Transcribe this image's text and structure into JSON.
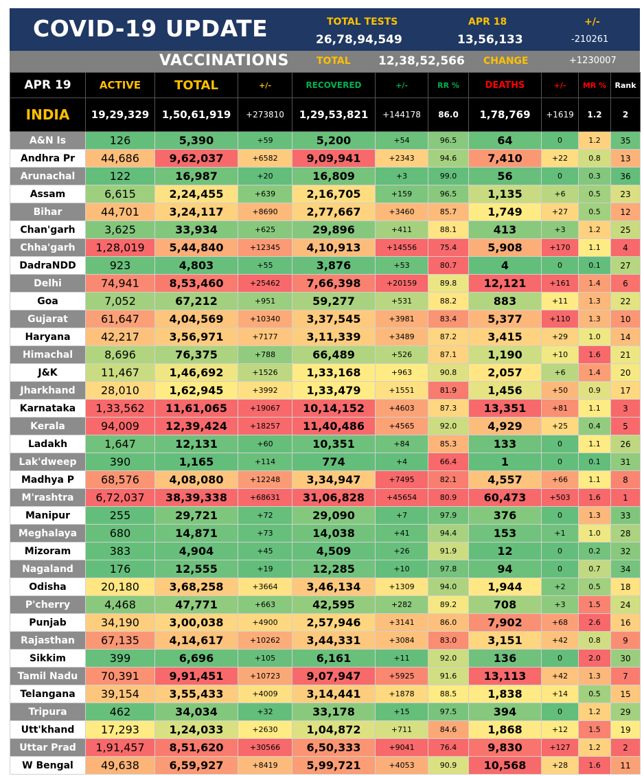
{
  "header": {
    "title": "COVID-19 UPDATE",
    "total_tests_label": "TOTAL TESTS",
    "total_tests": "26,78,94,549",
    "date_label": "APR 18",
    "date_tests": "13,56,133",
    "pm_label": "+/-",
    "pm_value": "-210261"
  },
  "vaccinations": {
    "title": "VACCINATIONS",
    "total_label": "TOTAL",
    "total": "12,38,52,566",
    "change_label": "CHANGE",
    "change": "+1230007"
  },
  "columns": [
    "APR 19",
    "ACTIVE",
    "TOTAL",
    "+/-",
    "RECOVERED",
    "+/-",
    "RR %",
    "DEATHS",
    "+/-",
    "MR %",
    "Rank"
  ],
  "column_colors": {
    "date": "#ffffff",
    "active": "#ffc000",
    "total": "#ffc000",
    "total_pm": "#ffc000",
    "recovered": "#00b050",
    "recovered_pm": "#00b050",
    "rr": "#00b050",
    "deaths": "#ff0000",
    "deaths_pm": "#ff0000",
    "mr": "#ff0000",
    "rank": "#ffffff"
  },
  "india": [
    "INDIA",
    "19,29,329",
    "1,50,61,919",
    "+273810",
    "1,29,53,821",
    "+144178",
    "86.0",
    "1,78,769",
    "+1619",
    "1.2",
    "2"
  ],
  "rows": [
    [
      "A&N Is",
      "126",
      "5,390",
      "+59",
      "5,200",
      "+54",
      "96.5",
      "64",
      "0",
      "1.2",
      "35"
    ],
    [
      "Andhra Pr",
      "44,686",
      "9,62,037",
      "+6582",
      "9,09,941",
      "+2343",
      "94.6",
      "7,410",
      "+22",
      "0.8",
      "13"
    ],
    [
      "Arunachal",
      "122",
      "16,987",
      "+20",
      "16,809",
      "+3",
      "99.0",
      "56",
      "0",
      "0.3",
      "36"
    ],
    [
      "Assam",
      "6,615",
      "2,24,455",
      "+639",
      "2,16,705",
      "+159",
      "96.5",
      "1,135",
      "+6",
      "0.5",
      "23"
    ],
    [
      "Bihar",
      "44,701",
      "3,24,117",
      "+8690",
      "2,77,667",
      "+3460",
      "85.7",
      "1,749",
      "+27",
      "0.5",
      "12"
    ],
    [
      "Chan'garh",
      "3,625",
      "33,934",
      "+625",
      "29,896",
      "+411",
      "88.1",
      "413",
      "+3",
      "1.2",
      "25"
    ],
    [
      "Chha'garh",
      "1,28,019",
      "5,44,840",
      "+12345",
      "4,10,913",
      "+14556",
      "75.4",
      "5,908",
      "+170",
      "1.1",
      "4"
    ],
    [
      "DadraNDD",
      "923",
      "4,803",
      "+55",
      "3,876",
      "+53",
      "80.7",
      "4",
      "0",
      "0.1",
      "27"
    ],
    [
      "Delhi",
      "74,941",
      "8,53,460",
      "+25462",
      "7,66,398",
      "+20159",
      "89.8",
      "12,121",
      "+161",
      "1.4",
      "6"
    ],
    [
      "Goa",
      "7,052",
      "67,212",
      "+951",
      "59,277",
      "+531",
      "88.2",
      "883",
      "+11",
      "1.3",
      "22"
    ],
    [
      "Gujarat",
      "61,647",
      "4,04,569",
      "+10340",
      "3,37,545",
      "+3981",
      "83.4",
      "5,377",
      "+110",
      "1.3",
      "10"
    ],
    [
      "Haryana",
      "42,217",
      "3,56,971",
      "+7177",
      "3,11,339",
      "+3489",
      "87.2",
      "3,415",
      "+29",
      "1.0",
      "14"
    ],
    [
      "Himachal",
      "8,696",
      "76,375",
      "+788",
      "66,489",
      "+526",
      "87.1",
      "1,190",
      "+10",
      "1.6",
      "21"
    ],
    [
      "J&K",
      "11,467",
      "1,46,692",
      "+1526",
      "1,33,168",
      "+963",
      "90.8",
      "2,057",
      "+6",
      "1.4",
      "20"
    ],
    [
      "Jharkhand",
      "28,010",
      "1,62,945",
      "+3992",
      "1,33,479",
      "+1551",
      "81.9",
      "1,456",
      "+50",
      "0.9",
      "17"
    ],
    [
      "Karnataka",
      "1,33,562",
      "11,61,065",
      "+19067",
      "10,14,152",
      "+4603",
      "87.3",
      "13,351",
      "+81",
      "1.1",
      "3"
    ],
    [
      "Kerala",
      "94,009",
      "12,39,424",
      "+18257",
      "11,40,486",
      "+4565",
      "92.0",
      "4,929",
      "+25",
      "0.4",
      "5"
    ],
    [
      "Ladakh",
      "1,647",
      "12,131",
      "+60",
      "10,351",
      "+84",
      "85.3",
      "133",
      "0",
      "1.1",
      "26"
    ],
    [
      "Lak'dweep",
      "390",
      "1,165",
      "+114",
      "774",
      "+4",
      "66.4",
      "1",
      "0",
      "0.1",
      "31"
    ],
    [
      "Madhya P",
      "68,576",
      "4,08,080",
      "+12248",
      "3,34,947",
      "+7495",
      "82.1",
      "4,557",
      "+66",
      "1.1",
      "8"
    ],
    [
      "M'rashtra",
      "6,72,037",
      "38,39,338",
      "+68631",
      "31,06,828",
      "+45654",
      "80.9",
      "60,473",
      "+503",
      "1.6",
      "1"
    ],
    [
      "Manipur",
      "255",
      "29,721",
      "+72",
      "29,090",
      "+7",
      "97.9",
      "376",
      "0",
      "1.3",
      "33"
    ],
    [
      "Meghalaya",
      "680",
      "14,871",
      "+73",
      "14,038",
      "+41",
      "94.4",
      "153",
      "+1",
      "1.0",
      "28"
    ],
    [
      "Mizoram",
      "383",
      "4,904",
      "+45",
      "4,509",
      "+26",
      "91.9",
      "12",
      "0",
      "0.2",
      "32"
    ],
    [
      "Nagaland",
      "176",
      "12,555",
      "+19",
      "12,285",
      "+10",
      "97.8",
      "94",
      "0",
      "0.7",
      "34"
    ],
    [
      "Odisha",
      "20,180",
      "3,68,258",
      "+3664",
      "3,46,134",
      "+1309",
      "94.0",
      "1,944",
      "+2",
      "0.5",
      "18"
    ],
    [
      "P'cherry",
      "4,468",
      "47,771",
      "+663",
      "42,595",
      "+282",
      "89.2",
      "708",
      "+3",
      "1.5",
      "24"
    ],
    [
      "Punjab",
      "34,190",
      "3,00,038",
      "+4900",
      "2,57,946",
      "+3141",
      "86.0",
      "7,902",
      "+68",
      "2.6",
      "16"
    ],
    [
      "Rajasthan",
      "67,135",
      "4,14,617",
      "+10262",
      "3,44,331",
      "+3084",
      "83.0",
      "3,151",
      "+42",
      "0.8",
      "9"
    ],
    [
      "Sikkim",
      "399",
      "6,696",
      "+105",
      "6,161",
      "+11",
      "92.0",
      "136",
      "0",
      "2.0",
      "30"
    ],
    [
      "Tamil Nadu",
      "70,391",
      "9,91,451",
      "+10723",
      "9,07,947",
      "+5925",
      "91.6",
      "13,113",
      "+42",
      "1.3",
      "7"
    ],
    [
      "Telangana",
      "39,154",
      "3,55,433",
      "+4009",
      "3,14,441",
      "+1878",
      "88.5",
      "1,838",
      "+14",
      "0.5",
      "15"
    ],
    [
      "Tripura",
      "462",
      "34,034",
      "+32",
      "33,178",
      "+15",
      "97.5",
      "394",
      "0",
      "1.2",
      "29"
    ],
    [
      "Utt'khand",
      "17,293",
      "1,24,033",
      "+2630",
      "1,04,872",
      "+711",
      "84.6",
      "1,868",
      "+12",
      "1.5",
      "19"
    ],
    [
      "Uttar Prad",
      "1,91,457",
      "8,51,620",
      "+30566",
      "6,50,333",
      "+9041",
      "76.4",
      "9,830",
      "+127",
      "1.2",
      "2"
    ],
    [
      "W Bengal",
      "49,638",
      "6,59,927",
      "+8419",
      "5,99,721",
      "+4053",
      "90.9",
      "10,568",
      "+28",
      "1.6",
      "11"
    ]
  ],
  "chart_data": {
    "type": "table",
    "title": "COVID-19 UPDATE",
    "columns": [
      "APR 19",
      "ACTIVE",
      "TOTAL",
      "+/-",
      "RECOVERED",
      "+/-",
      "RR %",
      "DEATHS",
      "+/-",
      "MR %",
      "Rank"
    ],
    "india": [
      "INDIA",
      1929329,
      15061919,
      273810,
      12953821,
      144178,
      86.0,
      178769,
      1619,
      1.2,
      2
    ],
    "states": [
      "A&N Is",
      "Andhra Pr",
      "Arunachal",
      "Assam",
      "Bihar",
      "Chan'garh",
      "Chha'garh",
      "DadraNDD",
      "Delhi",
      "Goa",
      "Gujarat",
      "Haryana",
      "Himachal",
      "J&K",
      "Jharkhand",
      "Karnataka",
      "Kerala",
      "Ladakh",
      "Lak'dweep",
      "Madhya P",
      "M'rashtra",
      "Manipur",
      "Meghalaya",
      "Mizoram",
      "Nagaland",
      "Odisha",
      "P'cherry",
      "Punjab",
      "Rajasthan",
      "Sikkim",
      "Tamil Nadu",
      "Telangana",
      "Tripura",
      "Utt'khand",
      "Uttar Prad",
      "W Bengal"
    ],
    "active": [
      126,
      44686,
      122,
      6615,
      44701,
      3625,
      128019,
      923,
      74941,
      7052,
      61647,
      42217,
      8696,
      11467,
      28010,
      133562,
      94009,
      1647,
      390,
      68576,
      672037,
      255,
      680,
      383,
      176,
      20180,
      4468,
      34190,
      67135,
      399,
      70391,
      39154,
      462,
      17293,
      191457,
      49638
    ],
    "total": [
      5390,
      962037,
      16987,
      224455,
      324117,
      33934,
      544840,
      4803,
      853460,
      67212,
      404569,
      356971,
      76375,
      146692,
      162945,
      1161065,
      1239424,
      12131,
      1165,
      408080,
      3839338,
      29721,
      14871,
      4904,
      12555,
      368258,
      47771,
      300038,
      414617,
      6696,
      991451,
      355433,
      34034,
      124033,
      851620,
      659927
    ],
    "total_change": [
      59,
      6582,
      20,
      639,
      8690,
      625,
      12345,
      55,
      25462,
      951,
      10340,
      7177,
      788,
      1526,
      3992,
      19067,
      18257,
      60,
      114,
      12248,
      68631,
      72,
      73,
      45,
      19,
      3664,
      663,
      4900,
      10262,
      105,
      10723,
      4009,
      32,
      2630,
      30566,
      8419
    ],
    "recovered": [
      5200,
      909941,
      16809,
      216705,
      277667,
      29896,
      410913,
      3876,
      766398,
      59277,
      337545,
      311339,
      66489,
      133168,
      133479,
      1014152,
      1140486,
      10351,
      774,
      334947,
      3106828,
      29090,
      14038,
      4509,
      12285,
      346134,
      42595,
      257946,
      344331,
      6161,
      907947,
      314441,
      33178,
      104872,
      650333,
      599721
    ],
    "recovered_change": [
      54,
      2343,
      3,
      159,
      3460,
      411,
      14556,
      53,
      20159,
      531,
      3981,
      3489,
      526,
      963,
      1551,
      4603,
      4565,
      84,
      4,
      7495,
      45654,
      7,
      41,
      26,
      10,
      1309,
      282,
      3141,
      3084,
      11,
      5925,
      1878,
      15,
      711,
      9041,
      4053
    ],
    "rr_pct": [
      96.5,
      94.6,
      99.0,
      96.5,
      85.7,
      88.1,
      75.4,
      80.7,
      89.8,
      88.2,
      83.4,
      87.2,
      87.1,
      90.8,
      81.9,
      87.3,
      92.0,
      85.3,
      66.4,
      82.1,
      80.9,
      97.9,
      94.4,
      91.9,
      97.8,
      94.0,
      89.2,
      86.0,
      83.0,
      92.0,
      91.6,
      88.5,
      97.5,
      84.6,
      76.4,
      90.9
    ],
    "deaths": [
      64,
      7410,
      56,
      1135,
      1749,
      413,
      5908,
      4,
      12121,
      883,
      5377,
      3415,
      1190,
      2057,
      1456,
      13351,
      4929,
      133,
      1,
      4557,
      60473,
      376,
      153,
      12,
      94,
      1944,
      708,
      7902,
      3151,
      136,
      13113,
      1838,
      394,
      1868,
      9830,
      10568
    ],
    "deaths_change": [
      0,
      22,
      0,
      6,
      27,
      3,
      170,
      0,
      161,
      11,
      110,
      29,
      10,
      6,
      50,
      81,
      25,
      0,
      0,
      66,
      503,
      0,
      1,
      0,
      0,
      2,
      3,
      68,
      42,
      0,
      42,
      14,
      0,
      12,
      127,
      28
    ],
    "mr_pct": [
      1.2,
      0.8,
      0.3,
      0.5,
      0.5,
      1.2,
      1.1,
      0.1,
      1.4,
      1.3,
      1.3,
      1.0,
      1.6,
      1.4,
      0.9,
      1.1,
      0.4,
      1.1,
      0.1,
      1.1,
      1.6,
      1.3,
      1.0,
      0.2,
      0.7,
      0.5,
      1.5,
      2.6,
      0.8,
      2.0,
      1.3,
      0.5,
      1.2,
      1.5,
      1.2,
      1.6
    ],
    "rank": [
      35,
      13,
      36,
      23,
      12,
      25,
      4,
      27,
      6,
      22,
      10,
      14,
      21,
      20,
      17,
      3,
      5,
      26,
      31,
      8,
      1,
      33,
      28,
      32,
      34,
      18,
      24,
      16,
      9,
      30,
      7,
      15,
      29,
      19,
      2,
      11
    ]
  }
}
